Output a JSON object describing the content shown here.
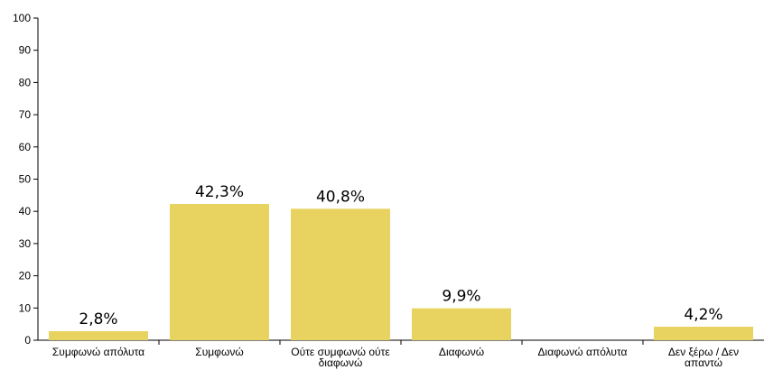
{
  "chart_data": {
    "type": "bar",
    "title": "",
    "xlabel": "",
    "ylabel": "",
    "categories": [
      [
        "Συμφωνώ απόλυτα"
      ],
      [
        "Συμφωνώ"
      ],
      [
        "Ούτε συμφωνώ ούτε",
        "διαφωνώ"
      ],
      [
        "Διαφωνώ"
      ],
      [
        "Διαφωνώ απόλυτα"
      ],
      [
        "Δεν ξέρω / Δεν",
        "απαντώ"
      ]
    ],
    "values": [
      2.8,
      42.3,
      40.8,
      9.9,
      null,
      4.2
    ],
    "data_labels": [
      "2,8%",
      "42,3%",
      "40,8%",
      "9,9%",
      "",
      "4,2%"
    ],
    "ylim": [
      0,
      100
    ],
    "yticks": [
      0,
      10,
      20,
      30,
      40,
      50,
      60,
      70,
      80,
      90,
      100
    ],
    "grid": false,
    "bar_color": "#e8d360"
  }
}
